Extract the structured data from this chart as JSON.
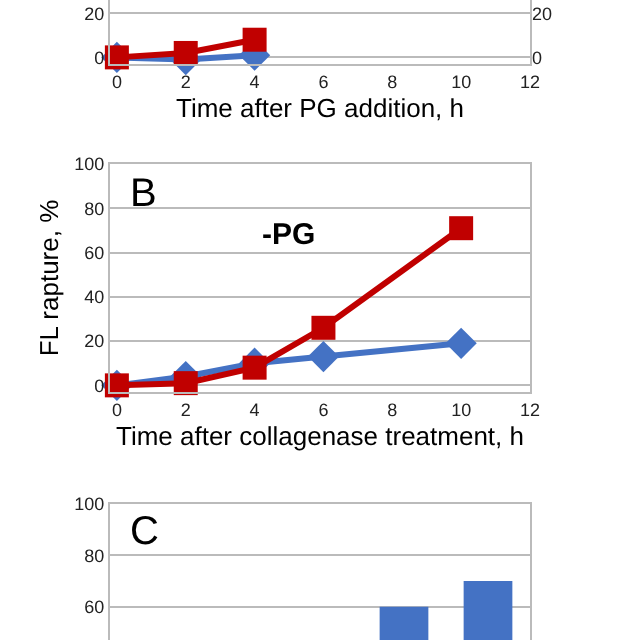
{
  "chart_data": [
    {
      "type": "line",
      "xlabel": "Time after PG addition, h",
      "x": [
        0,
        2,
        4
      ],
      "xlim": [
        -0.2,
        12
      ],
      "xticks": [
        0,
        2,
        4,
        6,
        8,
        10,
        12
      ],
      "ylim": [
        -3,
        26
      ],
      "yticks": [
        0,
        20
      ],
      "y2lim": [
        -3,
        26
      ],
      "y2ticks": [
        0,
        20
      ],
      "grid": "y",
      "series": [
        {
          "color": "#4472c4",
          "values": [
            0,
            -1,
            1
          ],
          "marker": "diamond"
        },
        {
          "color": "#c00000",
          "values": [
            0,
            2,
            8
          ],
          "marker": "square"
        }
      ]
    },
    {
      "type": "line",
      "xlabel": "Time after collagenase treatment, h",
      "ylabel": "FL rapture, %",
      "x": [
        0,
        2,
        4,
        6,
        10
      ],
      "xlim": [
        -0.2,
        12
      ],
      "xticks": [
        0,
        2,
        4,
        6,
        8,
        10,
        12
      ],
      "ylim": [
        -3,
        100
      ],
      "yticks": [
        0,
        20,
        40,
        60,
        80,
        100
      ],
      "grid": "y",
      "annotations": [
        "B",
        "-PG"
      ],
      "series": [
        {
          "color": "#4472c4",
          "values": [
            0,
            4,
            10,
            13,
            19
          ],
          "marker": "diamond"
        },
        {
          "color": "#c00000",
          "values": [
            0,
            1,
            8,
            26,
            71
          ],
          "marker": "square"
        }
      ]
    },
    {
      "type": "bar",
      "categories": [
        null,
        null,
        null,
        null,
        null
      ],
      "values": [
        null,
        null,
        null,
        60,
        70
      ],
      "color": "#4472c4",
      "ylim": [
        47,
        100
      ],
      "yticks": [
        60,
        80,
        100
      ],
      "grid": "y",
      "annotations": [
        "C"
      ]
    }
  ]
}
